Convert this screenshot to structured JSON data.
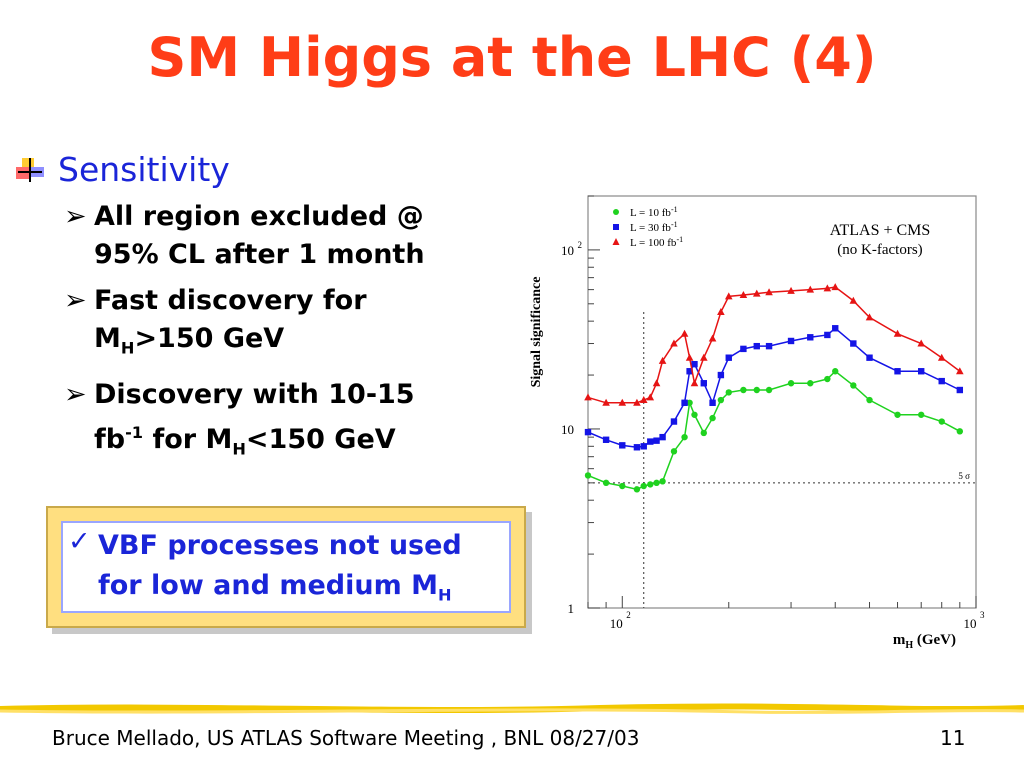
{
  "slide": {
    "title": "SM Higgs at the LHC (4)",
    "heading": "Sensitivity",
    "bullets": [
      {
        "line1": "All region excluded @",
        "line2": "95% CL after 1 month"
      },
      {
        "line1": "Fast discovery for",
        "line2_pre": "M",
        "line2_sub": "H",
        "line2_post": ">150 GeV"
      },
      {
        "line1": "Discovery with 10-15",
        "line2_a": "fb",
        "line2_sup": "-1",
        "line2_b": " for M",
        "line2_sub": "H",
        "line2_c": "<150 GeV"
      }
    ],
    "callout": {
      "line1": "VBF processes not used",
      "line2_pre": "for low and medium M",
      "line2_sub": "H"
    },
    "footer": "Bruce Mellado, US ATLAS Software Meeting , BNL 08/27/03",
    "page": "11",
    "colors": {
      "title": "#ff3d17",
      "blue": "#1a25d8",
      "callout_fill": "#ffdf80"
    }
  },
  "chart_data": {
    "type": "line",
    "ylabel": "Signal significance",
    "xlabel_main": "m",
    "xlabel_sub": "H",
    "xlabel_unit": " (GeV)",
    "x_scale": "log",
    "y_scale": "log",
    "xlim": [
      80,
      1000
    ],
    "ylim": [
      1,
      200
    ],
    "x_ticks": [
      {
        "value": 100,
        "base": "10",
        "exp": "2"
      },
      {
        "value": 1000,
        "base": "10",
        "exp": "3"
      }
    ],
    "y_ticks": [
      {
        "value": 1,
        "base": "1",
        "exp": ""
      },
      {
        "value": 10,
        "base": "10",
        "exp": ""
      },
      {
        "value": 100,
        "base": "10",
        "exp": "2"
      }
    ],
    "annotation_title": "ATLAS + CMS",
    "annotation_sub": "(no K-factors)",
    "five_sigma_label": "5 σ",
    "five_sigma_value": 5,
    "vertical_line_x": 115,
    "x": [
      80,
      90,
      100,
      110,
      115,
      120,
      125,
      130,
      140,
      150,
      155,
      160,
      170,
      180,
      190,
      200,
      220,
      240,
      260,
      300,
      340,
      380,
      400,
      450,
      500,
      600,
      700,
      800,
      900
    ],
    "series": [
      {
        "name_base": "L = 10 fb",
        "name_sup": "-1",
        "marker": "circle",
        "color": "#1fd21f",
        "values": [
          5.5,
          5.0,
          4.8,
          4.6,
          4.8,
          4.9,
          5.0,
          5.1,
          7.5,
          9.0,
          14.0,
          12.0,
          9.5,
          11.5,
          14.5,
          16.0,
          16.5,
          16.5,
          16.5,
          18.0,
          18.0,
          19.0,
          21.0,
          17.5,
          14.5,
          12.0,
          12.0,
          11.0,
          9.7
        ]
      },
      {
        "name_base": "L = 30 fb",
        "name_sup": "-1",
        "marker": "square",
        "color": "#1414e6",
        "values": [
          9.6,
          8.7,
          8.1,
          7.9,
          8.0,
          8.5,
          8.6,
          9.0,
          11.0,
          14.0,
          21.0,
          23.0,
          18.0,
          14.0,
          20.0,
          25.0,
          28.0,
          29.0,
          29.0,
          31.0,
          32.5,
          33.5,
          36.5,
          30.0,
          25.0,
          21.0,
          21.0,
          18.5,
          16.5
        ]
      },
      {
        "name_base": "L = 100 fb",
        "name_sup": "-1",
        "marker": "triangle",
        "color": "#e61414",
        "values": [
          15.0,
          14.0,
          14.0,
          14.0,
          14.5,
          15.0,
          18.0,
          24.0,
          30.0,
          34.0,
          25.0,
          18.0,
          25.0,
          32.0,
          45.0,
          55.0,
          56.0,
          57.0,
          58.0,
          59.0,
          60.0,
          61.0,
          62.0,
          52.0,
          42.0,
          34.0,
          30.0,
          25.0,
          21.0
        ]
      }
    ]
  }
}
